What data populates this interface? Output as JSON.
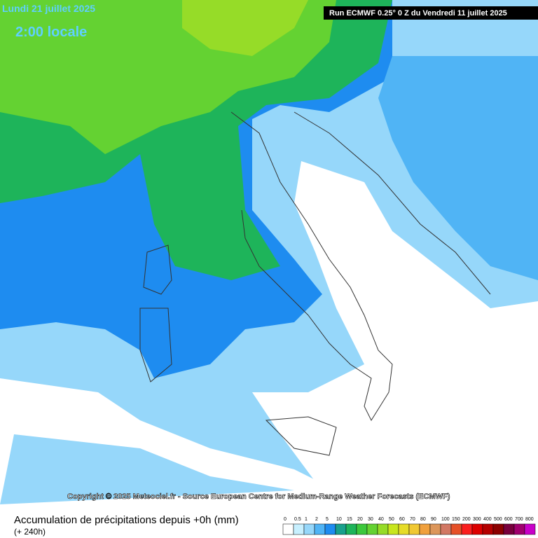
{
  "header": {
    "date": "Lundi 21 juillet 2025",
    "time": "2:00 locale",
    "run": "Run ECMWF 0.25° 0 Z du Vendredi 11 juillet 2025"
  },
  "copyright": "Copyright © 2025 Meteociel.fr - Source European Centre for Medium-Range Weather Forecasts (ECMWF)",
  "footer": {
    "title": "Accumulation de précipitations depuis +0h (mm)",
    "lead": "(+ 240h)"
  },
  "legend": {
    "items": [
      {
        "label": "0",
        "color": "#ffffff"
      },
      {
        "label": "0.5",
        "color": "#c8f0ff"
      },
      {
        "label": "1",
        "color": "#96d7fa"
      },
      {
        "label": "2",
        "color": "#50b4f5"
      },
      {
        "label": "5",
        "color": "#1e8cf0"
      },
      {
        "label": "10",
        "color": "#19a08c"
      },
      {
        "label": "15",
        "color": "#1eb45a"
      },
      {
        "label": "20",
        "color": "#3cc83c"
      },
      {
        "label": "30",
        "color": "#64d232"
      },
      {
        "label": "40",
        "color": "#96dc28"
      },
      {
        "label": "50",
        "color": "#c8e61e"
      },
      {
        "label": "60",
        "color": "#e6dc28"
      },
      {
        "label": "70",
        "color": "#f0c832"
      },
      {
        "label": "80",
        "color": "#f0a03c"
      },
      {
        "label": "90",
        "color": "#dc965a"
      },
      {
        "label": "100",
        "color": "#d27864"
      },
      {
        "label": "150",
        "color": "#e65028"
      },
      {
        "label": "200",
        "color": "#fa1e1e"
      },
      {
        "label": "300",
        "color": "#dc0000"
      },
      {
        "label": "400",
        "color": "#b40000"
      },
      {
        "label": "500",
        "color": "#8c0000"
      },
      {
        "label": "600",
        "color": "#78003c"
      },
      {
        "label": "700",
        "color": "#a0006e"
      },
      {
        "label": "800",
        "color": "#c800c8"
      }
    ]
  }
}
